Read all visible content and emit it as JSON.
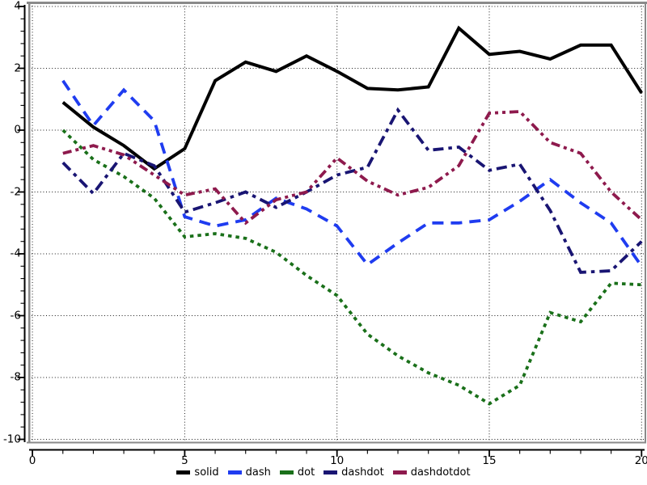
{
  "chart_data": {
    "type": "line",
    "title": "",
    "xlabel": "",
    "ylabel": "",
    "xlim": [
      0,
      20
    ],
    "ylim": [
      -10,
      4
    ],
    "xticks": [
      0,
      5,
      10,
      15,
      20
    ],
    "yticks": [
      4,
      2,
      0,
      -2,
      -4,
      -6,
      -8,
      -10
    ],
    "x_minor_step": 1,
    "y_minor_step": 0.4,
    "grid": true,
    "grid_style": "dotted",
    "legend_position": "bottom-center",
    "x": [
      1,
      2,
      3,
      4,
      5,
      6,
      7,
      8,
      9,
      10,
      11,
      12,
      13,
      14,
      15,
      16,
      17,
      18,
      19,
      20
    ],
    "series": [
      {
        "name": "solid",
        "color": "#000000",
        "line_style": "solid",
        "values": [
          0.9,
          0.1,
          -0.5,
          -1.25,
          -0.6,
          1.6,
          2.2,
          1.9,
          2.4,
          1.9,
          1.35,
          1.3,
          1.4,
          3.3,
          2.45,
          2.55,
          2.3,
          2.75,
          2.75,
          1.2
        ]
      },
      {
        "name": "dash",
        "color": "#1f3cf0",
        "line_style": "dash",
        "values": [
          1.6,
          0.15,
          1.3,
          0.3,
          -2.8,
          -3.1,
          -2.9,
          -2.2,
          -2.55,
          -3.1,
          -4.35,
          -3.65,
          -3.0,
          -3.0,
          -2.9,
          -2.3,
          -1.6,
          -2.35,
          -3.0,
          -4.4
        ]
      },
      {
        "name": "dot",
        "color": "#1a701a",
        "line_style": "dot",
        "values": [
          0.0,
          -0.95,
          -1.5,
          -2.2,
          -3.45,
          -3.35,
          -3.5,
          -3.95,
          -4.7,
          -5.35,
          -6.6,
          -7.3,
          -7.85,
          -8.25,
          -8.85,
          -8.25,
          -5.9,
          -6.2,
          -4.95,
          -5.0
        ]
      },
      {
        "name": "dashdot",
        "color": "#191573",
        "line_style": "dashdot",
        "values": [
          -1.05,
          -2.05,
          -0.75,
          -1.15,
          -2.65,
          -2.35,
          -2.0,
          -2.5,
          -2.0,
          -1.45,
          -1.2,
          0.65,
          -0.65,
          -0.55,
          -1.3,
          -1.1,
          -2.6,
          -4.6,
          -4.55,
          -3.6
        ]
      },
      {
        "name": "dashdotdot",
        "color": "#8e1a4d",
        "line_style": "dashdotdot",
        "values": [
          -0.75,
          -0.5,
          -0.8,
          -1.45,
          -2.1,
          -1.9,
          -3.0,
          -2.25,
          -2.0,
          -0.9,
          -1.65,
          -2.1,
          -1.85,
          -1.15,
          0.55,
          0.6,
          -0.4,
          -0.75,
          -2.0,
          -2.9
        ]
      }
    ]
  },
  "legend": {
    "items": [
      "solid",
      "dash",
      "dot",
      "dashdot",
      "dashdotdot"
    ]
  },
  "style": {
    "background": "#ffffff",
    "grid_color": "#1a1a1a",
    "axis_color": "#000000",
    "frame_color": "#8a8a8a",
    "tick_label_color": "#000000"
  }
}
